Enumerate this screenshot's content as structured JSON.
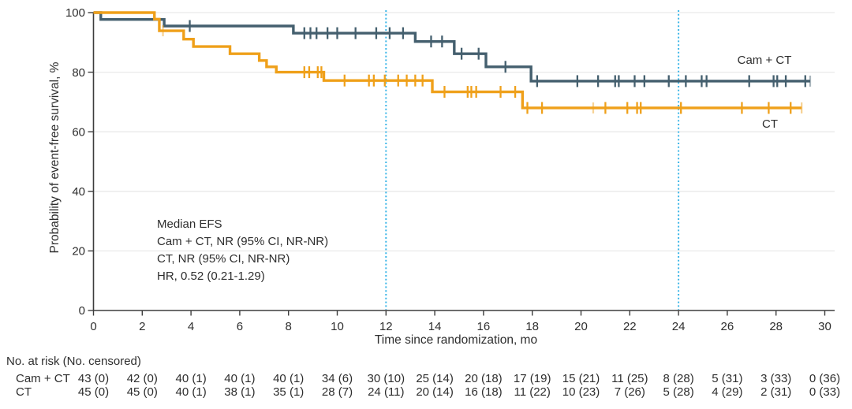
{
  "chart_data": {
    "type": "line",
    "subtype": "kaplan-meier-step",
    "title": "",
    "xlabel": "Time since randomization, mo",
    "ylabel": "Probability of event-free survival, %",
    "xlim": [
      0,
      30
    ],
    "ylim": [
      0,
      100
    ],
    "xticks": [
      0,
      2,
      4,
      6,
      8,
      10,
      12,
      14,
      16,
      18,
      20,
      22,
      24,
      26,
      28,
      30
    ],
    "yticks": [
      0,
      20,
      40,
      60,
      80,
      100
    ],
    "grid": "horizontal",
    "grid_color": "#e9e9e9",
    "axis_color": "#3d3d3d",
    "text_color": "#2e2e2e",
    "reference_lines_x": [
      12,
      24
    ],
    "reference_line_color": "#3cb6e8",
    "legend_position": "right-of-curves",
    "annotation": [
      "Median EFS",
      "Cam + CT, NR (95% CI, NR-NR)",
      "CT, NR (95% CI, NR-NR)",
      "HR, 0.52 (0.21-1.29)"
    ],
    "series": [
      {
        "id": "camct",
        "name": "Cam + CT",
        "color": "#445f6e",
        "points": [
          [
            0,
            100
          ],
          [
            0.3,
            97.7
          ],
          [
            2.9,
            95.5
          ],
          [
            8.2,
            93.1
          ],
          [
            13.2,
            90.3
          ],
          [
            14.8,
            86.2
          ],
          [
            16.1,
            81.8
          ],
          [
            17.95,
            77.0
          ]
        ],
        "end_time": 29.4,
        "censors": [
          [
            3.95,
            95.5
          ],
          [
            8.65,
            93.1
          ],
          [
            8.9,
            93.1
          ],
          [
            9.15,
            93.1
          ],
          [
            9.6,
            93.1
          ],
          [
            10.0,
            93.1
          ],
          [
            10.75,
            93.1
          ],
          [
            11.6,
            93.1
          ],
          [
            12.15,
            93.1
          ],
          [
            12.7,
            93.1
          ],
          [
            13.85,
            90.3
          ],
          [
            14.3,
            90.3
          ],
          [
            15.1,
            86.2
          ],
          [
            15.8,
            86.2
          ],
          [
            16.9,
            81.8
          ],
          [
            18.2,
            77.0
          ],
          [
            19.85,
            77.0
          ],
          [
            20.7,
            77.0
          ],
          [
            21.4,
            77.0
          ],
          [
            21.55,
            77.0
          ],
          [
            22.2,
            77.0
          ],
          [
            22.6,
            77.0
          ],
          [
            23.6,
            77.0
          ],
          [
            24.3,
            77.0
          ],
          [
            24.95,
            77.0
          ],
          [
            25.15,
            77.0
          ],
          [
            26.9,
            77.0
          ],
          [
            27.9,
            77.0
          ],
          [
            28.05,
            77.0
          ],
          [
            28.4,
            77.0
          ],
          [
            29.2,
            77.0
          ]
        ],
        "censors_faint": [
          [
            29.4,
            77.0
          ]
        ]
      },
      {
        "id": "ct",
        "name": "CT",
        "color": "#efa01a",
        "points": [
          [
            0,
            100
          ],
          [
            2.5,
            97.8
          ],
          [
            2.7,
            93.9
          ],
          [
            3.7,
            91.1
          ],
          [
            4.1,
            88.6
          ],
          [
            5.6,
            86.2
          ],
          [
            6.8,
            83.9
          ],
          [
            7.1,
            81.8
          ],
          [
            7.5,
            80.0
          ],
          [
            9.45,
            77.2
          ],
          [
            13.9,
            73.4
          ],
          [
            17.6,
            68.0
          ]
        ],
        "end_time": 29.05,
        "censors": [
          [
            8.65,
            80.0
          ],
          [
            8.85,
            80.0
          ],
          [
            9.2,
            80.0
          ],
          [
            9.35,
            80.0
          ],
          [
            10.3,
            77.2
          ],
          [
            11.3,
            77.2
          ],
          [
            11.5,
            77.2
          ],
          [
            11.95,
            77.2
          ],
          [
            12.5,
            77.2
          ],
          [
            12.85,
            77.2
          ],
          [
            13.2,
            77.2
          ],
          [
            13.5,
            77.2
          ],
          [
            14.4,
            73.4
          ],
          [
            15.35,
            73.4
          ],
          [
            15.5,
            73.4
          ],
          [
            15.7,
            73.4
          ],
          [
            16.7,
            73.4
          ],
          [
            17.3,
            73.4
          ],
          [
            17.8,
            68.0
          ],
          [
            18.4,
            68.0
          ],
          [
            21.0,
            68.0
          ],
          [
            21.9,
            68.0
          ],
          [
            22.3,
            68.0
          ],
          [
            22.45,
            68.0
          ],
          [
            24.1,
            68.0
          ],
          [
            26.6,
            68.0
          ],
          [
            27.7,
            68.0
          ],
          [
            28.6,
            68.0
          ]
        ],
        "censors_faint": [
          [
            2.85,
            93.9
          ],
          [
            20.5,
            68.0
          ],
          [
            29.05,
            68.0
          ]
        ]
      }
    ]
  },
  "risk_table": {
    "header": "No. at risk (No. censored)",
    "time_points": [
      0,
      2,
      4,
      6,
      8,
      10,
      12,
      14,
      16,
      18,
      20,
      22,
      24,
      26,
      28,
      30
    ],
    "rows": [
      {
        "label": "Cam + CT",
        "values": [
          "43 (0)",
          "42 (0)",
          "40 (1)",
          "40 (1)",
          "40 (1)",
          "34 (6)",
          "30 (10)",
          "25 (14)",
          "20 (18)",
          "17 (19)",
          "15 (21)",
          "11 (25)",
          "8 (28)",
          "5 (31)",
          "3 (33)",
          "0 (36)"
        ]
      },
      {
        "label": "CT",
        "values": [
          "45 (0)",
          "45 (0)",
          "40 (1)",
          "38 (1)",
          "35 (1)",
          "28 (7)",
          "24 (11)",
          "20 (14)",
          "16 (18)",
          "11 (22)",
          "10 (23)",
          "7 (26)",
          "5 (28)",
          "4 (29)",
          "2 (31)",
          "0 (33)"
        ]
      }
    ]
  }
}
